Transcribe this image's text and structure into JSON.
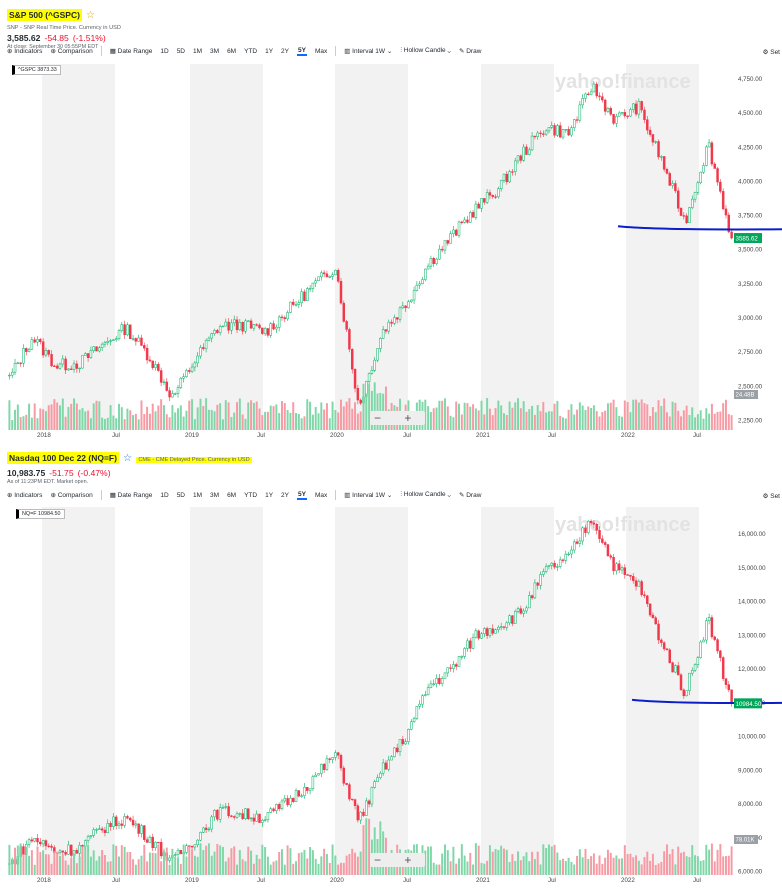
{
  "panels": [
    {
      "id": "spx",
      "title": "S&P 500 (^GSPC)",
      "source": "SNP - SNP Real Time Price. Currency in USD",
      "price": "3,585.62",
      "change": "-54.85",
      "change_pct": "(-1.51%)",
      "close_note": "At close: September 30 05:55PM EDT",
      "tag": "^GSPC 3873.33",
      "last_label": "3585.62",
      "vol_label": "24.48B",
      "watermark": "yahoo!finance"
    },
    {
      "id": "nq",
      "title": "Nasdaq 100 Dec 22 (NQ=F)",
      "source": "CME - CME Delayed Price. Currency in USD",
      "price": "10,983.75",
      "change": "-51.75",
      "change_pct": "(-0.47%)",
      "close_note": "As of 11:23PM EDT. Market open.",
      "tag": "NQ=F 10984.50",
      "last_label": "10984.50",
      "vol_label": "78.01K",
      "watermark": "yahoo!finance"
    }
  ],
  "toolbar": {
    "indicators": "Indicators",
    "comparison": "Comparison",
    "date_range": "Date Range",
    "ranges": [
      "1D",
      "5D",
      "1M",
      "3M",
      "6M",
      "YTD",
      "1Y",
      "2Y",
      "5Y",
      "Max"
    ],
    "selected_range": "5Y",
    "interval": "Interval",
    "interval_value": "1W",
    "candle": "Hollow Candle",
    "draw": "Draw",
    "settings": "Set"
  },
  "chart_data": [
    {
      "type": "candlestick",
      "title": "S&P 500 (^GSPC)",
      "x_ticks": [
        "2018",
        "Jul",
        "2019",
        "Jul",
        "2020",
        "Jul",
        "2021",
        "Jul",
        "2022",
        "Jul"
      ],
      "y_ticks": [
        2250,
        2500,
        2750,
        3000,
        3250,
        3500,
        3750,
        4000,
        4250,
        4500,
        4750
      ],
      "y_tick_labels": [
        "2,250.00",
        "2,500.00",
        "2,750.00",
        "3,000.00",
        "3,250.00",
        "3,500.00",
        "3,750.00",
        "4,000.00",
        "4,250.00",
        "4,500.00",
        "4,750.00"
      ],
      "ylim": [
        2180,
        4860
      ],
      "x": [
        "2017-10",
        "2018-01",
        "2018-02",
        "2018-04",
        "2018-07",
        "2018-09",
        "2018-10",
        "2018-12",
        "2019-01",
        "2019-04",
        "2019-06",
        "2019-08",
        "2019-10",
        "2019-12",
        "2020-02",
        "2020-03",
        "2020-04",
        "2020-06",
        "2020-09",
        "2020-11",
        "2021-01",
        "2021-03",
        "2021-05",
        "2021-07",
        "2021-09",
        "2021-11",
        "2022-01",
        "2022-03",
        "2022-04",
        "2022-06",
        "2022-08",
        "2022-09"
      ],
      "close": [
        2560,
        2860,
        2650,
        2670,
        2800,
        2930,
        2720,
        2420,
        2700,
        2940,
        2950,
        2900,
        3060,
        3230,
        3380,
        2350,
        2900,
        3100,
        3400,
        3600,
        3800,
        3950,
        4200,
        4400,
        4350,
        4700,
        4450,
        4550,
        4150,
        3700,
        4280,
        3585
      ],
      "reference_line": 3650,
      "last_price": 3585.62
    },
    {
      "type": "candlestick",
      "title": "Nasdaq 100 Dec 22 (NQ=F)",
      "x_ticks": [
        "2018",
        "Jul",
        "2019",
        "Jul",
        "2020",
        "Jul",
        "2021",
        "Jul",
        "2022",
        "Jul"
      ],
      "y_ticks": [
        6000,
        7000,
        8000,
        9000,
        10000,
        11000,
        12000,
        13000,
        14000,
        15000,
        16000
      ],
      "y_tick_labels": [
        "6,000.00",
        "7,000.00",
        "8,000.00",
        "9,000.00",
        "10,000.00",
        "11,000.00",
        "12,000.00",
        "13,000.00",
        "14,000.00",
        "15,000.00",
        "16,000.00"
      ],
      "ylim": [
        5900,
        16800
      ],
      "x": [
        "2017-10",
        "2018-01",
        "2018-02",
        "2018-04",
        "2018-07",
        "2018-09",
        "2018-10",
        "2018-12",
        "2019-01",
        "2019-04",
        "2019-06",
        "2019-08",
        "2019-10",
        "2019-12",
        "2020-02",
        "2020-03",
        "2020-04",
        "2020-06",
        "2020-09",
        "2020-11",
        "2021-01",
        "2021-03",
        "2021-05",
        "2021-07",
        "2021-09",
        "2021-11",
        "2022-01",
        "2022-03",
        "2022-04",
        "2022-06",
        "2022-08",
        "2022-09"
      ],
      "close": [
        6200,
        7000,
        6600,
        6700,
        7300,
        7600,
        7000,
        6300,
        7000,
        7800,
        7700,
        7600,
        8100,
        8700,
        9500,
        7500,
        9000,
        10000,
        11500,
        12000,
        13000,
        13300,
        13700,
        14900,
        15300,
        16500,
        15000,
        14500,
        12800,
        11300,
        13500,
        10984
      ],
      "reference_line": 11000,
      "last_price": 10984.5
    }
  ]
}
